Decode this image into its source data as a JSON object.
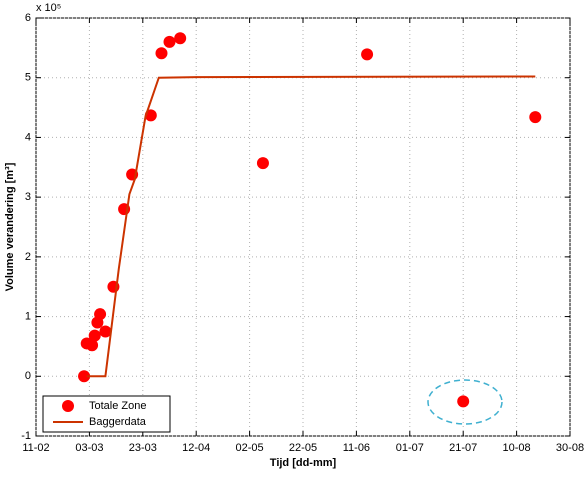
{
  "chart_data": {
    "type": "scatter",
    "x_label": "Tijd [dd-mm]",
    "y_label": "Volume verandering [m³]",
    "y_multiplier": "x 10⁵",
    "xlim": [
      "11-02",
      "30-08"
    ],
    "xticks": [
      "11-02",
      "03-03",
      "23-03",
      "12-04",
      "02-05",
      "22-05",
      "11-06",
      "01-07",
      "21-07",
      "10-08",
      "30-08"
    ],
    "ylim": [
      -1,
      6
    ],
    "yticks": [
      -1,
      0,
      1,
      2,
      3,
      4,
      5,
      6
    ],
    "grid": true,
    "legend": "lower left",
    "series": [
      {
        "name": "Totale Zone",
        "type": "scatter",
        "color": "#ff0000",
        "x": [
          "01-03",
          "02-03",
          "04-03",
          "05-03",
          "06-03",
          "07-03",
          "09-03",
          "12-03",
          "16-03",
          "19-03",
          "26-03",
          "30-03",
          "02-04",
          "06-04",
          "07-05",
          "15-06",
          "21-07",
          "17-08"
        ],
        "values": [
          0,
          0.55,
          0.52,
          0.68,
          0.9,
          1.04,
          0.75,
          1.5,
          2.8,
          3.38,
          4.37,
          5.41,
          5.6,
          5.66,
          3.57,
          5.39,
          -0.42,
          4.34
        ]
      },
      {
        "name": "Baggerdata",
        "type": "line",
        "color": "#cc3300",
        "x": [
          "02-03",
          "09-03",
          "14-03",
          "18-03",
          "20-03",
          "24-03",
          "29-03",
          "12-04",
          "17-08"
        ],
        "values": [
          0,
          0,
          1.8,
          3.05,
          3.3,
          4.35,
          5.0,
          5.01,
          5.02
        ]
      }
    ]
  }
}
